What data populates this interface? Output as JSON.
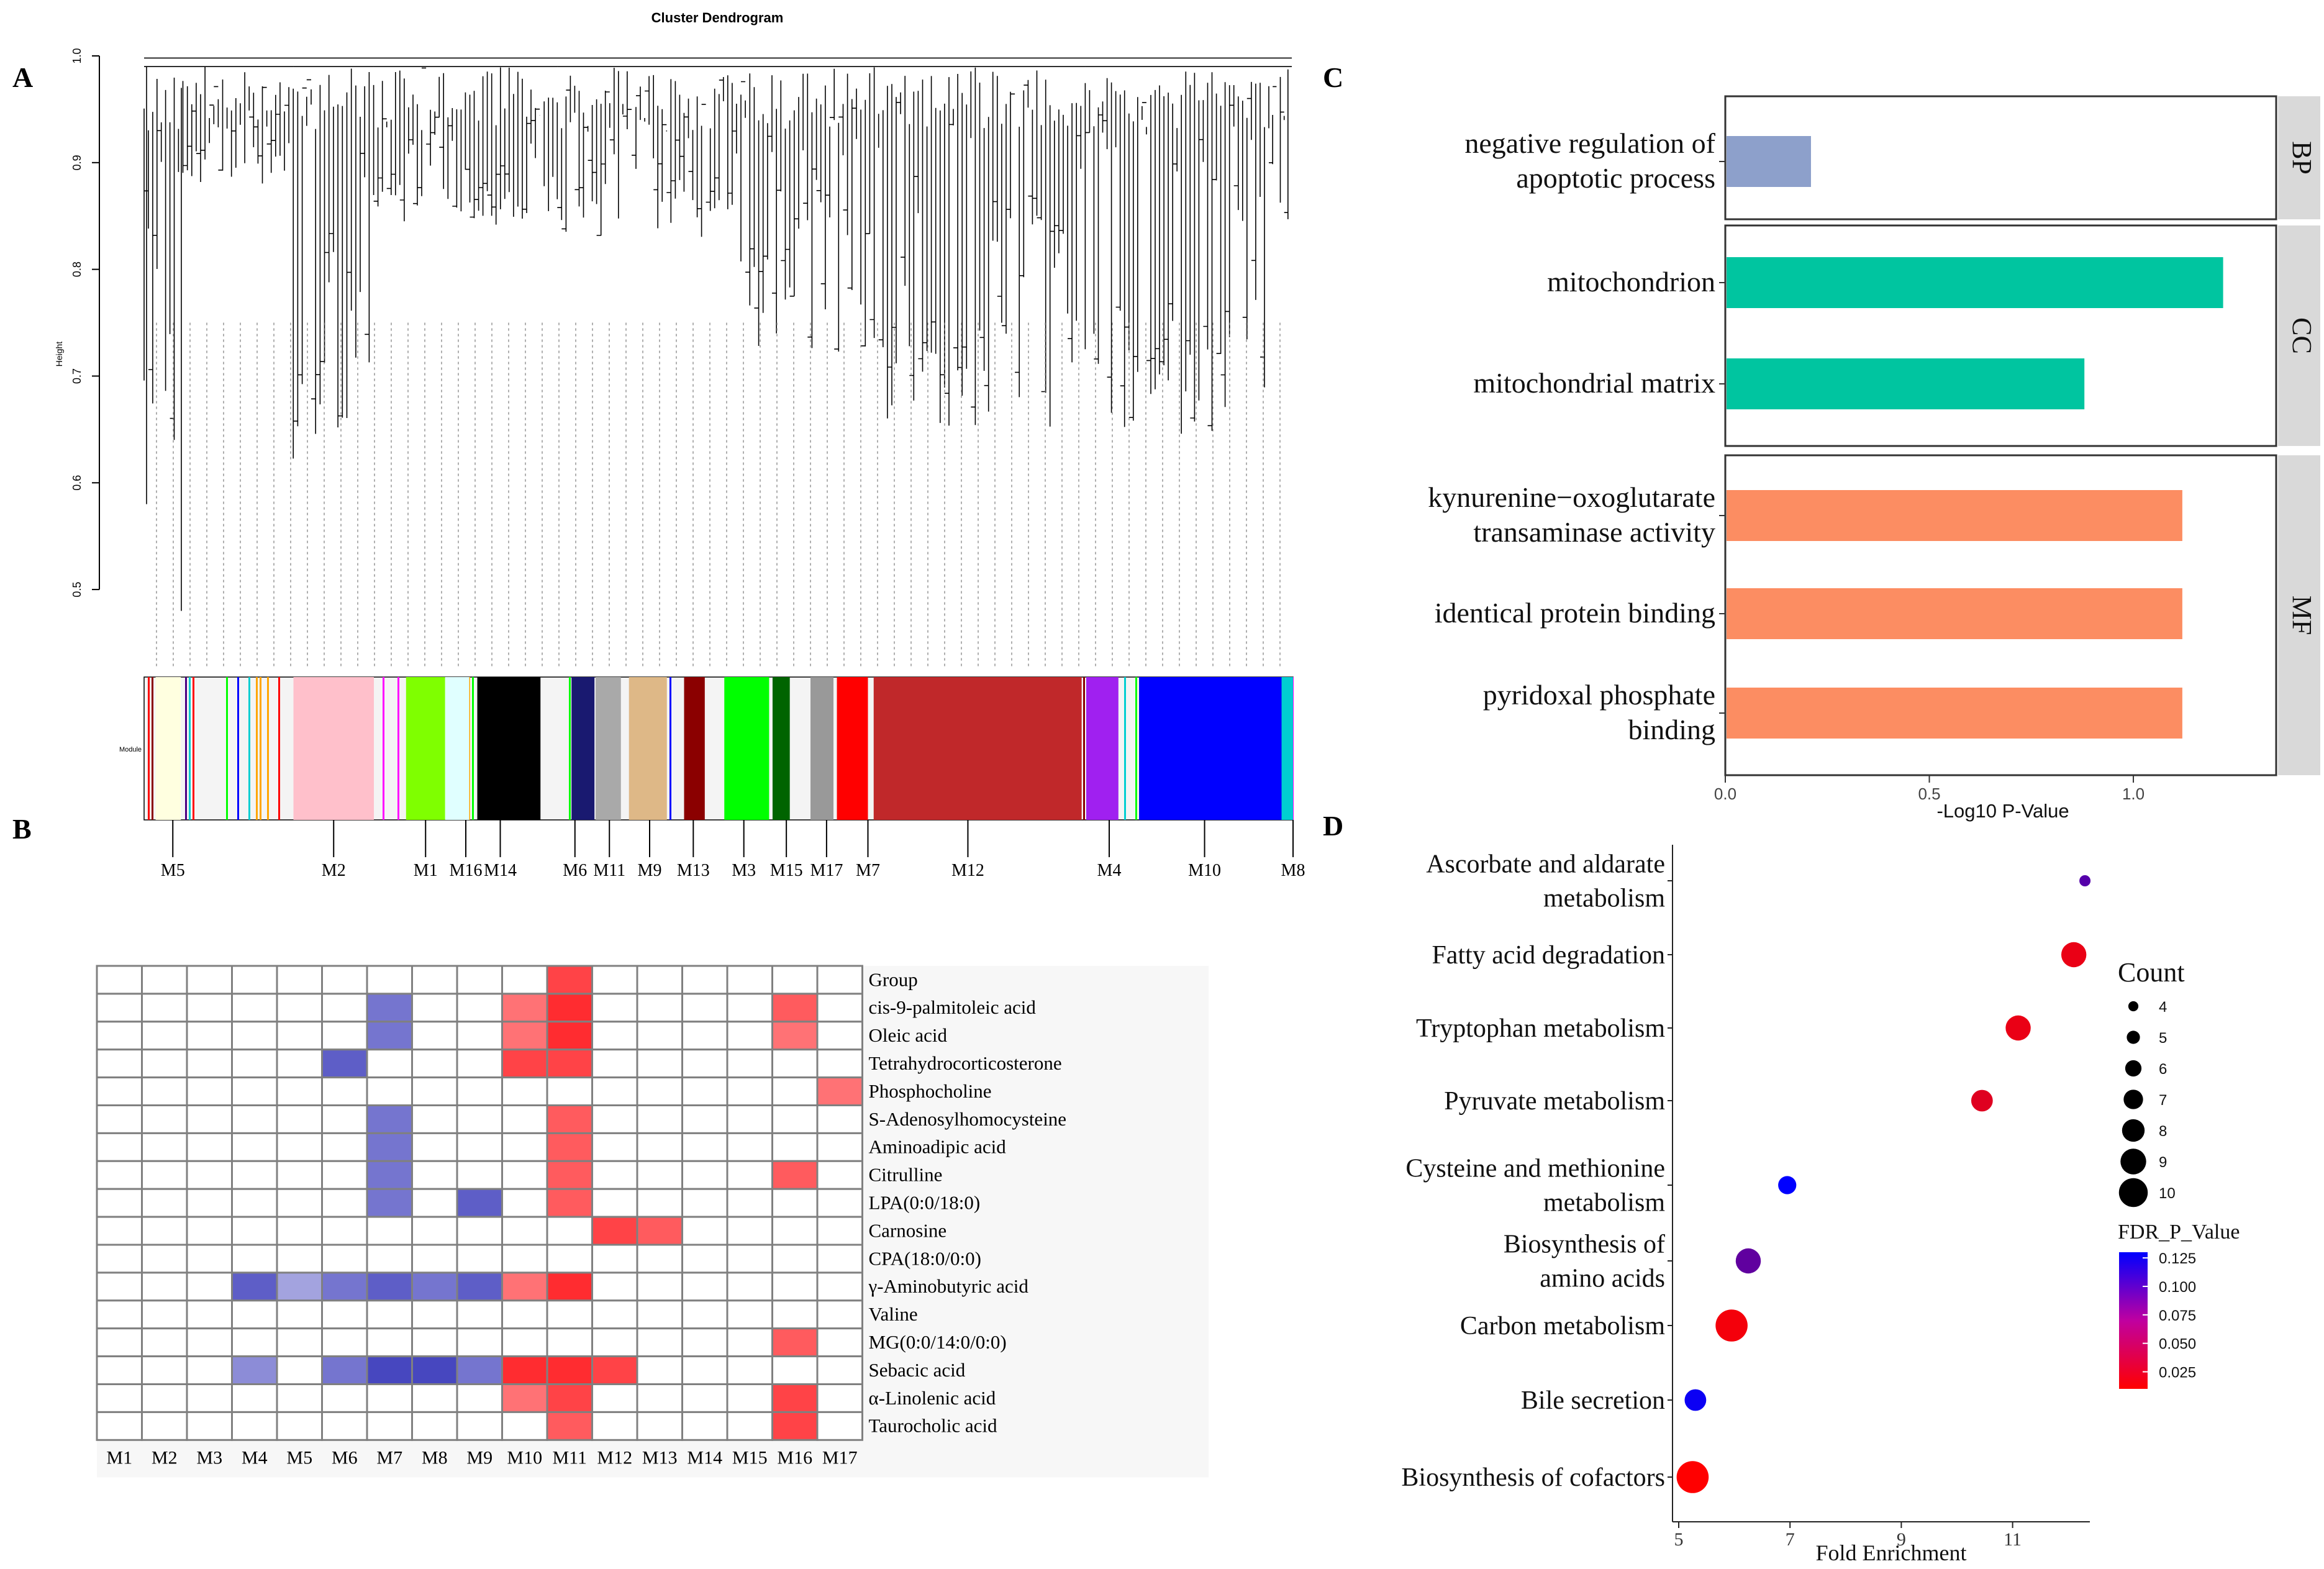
{
  "panel_labels": [
    "A",
    "B",
    "C",
    "D"
  ],
  "chart_data": [
    {
      "panel": "A",
      "type": "dendrogram",
      "title": "Cluster Dendrogram",
      "ylabel": "Height",
      "ylim": [
        0.45,
        1.0
      ],
      "yticks": [
        "0.5",
        "0.6",
        "0.7",
        "0.8",
        "0.9",
        "1.0"
      ],
      "ytick_values": [
        0.5,
        0.6,
        0.7,
        0.8,
        0.9,
        1.0
      ],
      "color_bar_label": "Module",
      "modules": [
        {
          "name": "M5",
          "color": "#ffffe0",
          "start": 0.01,
          "end": 0.032
        },
        {
          "name": "M2",
          "color": "#ffc0cb",
          "start": 0.13,
          "end": 0.2
        },
        {
          "name": "M1",
          "color": "#7fff00",
          "start": 0.228,
          "end": 0.262
        },
        {
          "name": "M16",
          "color": "#e0ffff",
          "start": 0.262,
          "end": 0.283
        },
        {
          "name": "M14",
          "color": "#000000",
          "start": 0.29,
          "end": 0.345
        },
        {
          "name": "M6",
          "color": "#191970",
          "start": 0.372,
          "end": 0.392
        },
        {
          "name": "M11",
          "color": "#a9a9a9",
          "start": 0.393,
          "end": 0.415
        },
        {
          "name": "M9",
          "color": "#deb887",
          "start": 0.422,
          "end": 0.455
        },
        {
          "name": "M13",
          "color": "#8b0000",
          "start": 0.47,
          "end": 0.488
        },
        {
          "name": "M3",
          "color": "#00ff00",
          "start": 0.505,
          "end": 0.544
        },
        {
          "name": "M15",
          "color": "#006400",
          "start": 0.547,
          "end": 0.562
        },
        {
          "name": "M17",
          "color": "#999999",
          "start": 0.58,
          "end": 0.6
        },
        {
          "name": "M7",
          "color": "#ff0000",
          "start": 0.603,
          "end": 0.63
        },
        {
          "name": "M12",
          "color": "#c0282a",
          "start": 0.635,
          "end": 0.816
        },
        {
          "name": "M4",
          "color": "#a020f0",
          "start": 0.82,
          "end": 0.848
        },
        {
          "name": "M10",
          "color": "#0000ff",
          "start": 0.866,
          "end": 0.99
        },
        {
          "name": "M8",
          "color": "#00ced1",
          "start": 0.99,
          "end": 1.0
        }
      ],
      "module_label_positions": [
        0.025,
        0.165,
        0.245,
        0.28,
        0.31,
        0.375,
        0.405,
        0.44,
        0.478,
        0.522,
        0.559,
        0.594,
        0.63,
        0.717,
        0.84,
        0.923,
        1.0
      ]
    },
    {
      "panel": "B",
      "type": "heatmap",
      "columns": [
        "M1",
        "M2",
        "M3",
        "M4",
        "M5",
        "M6",
        "M7",
        "M8",
        "M9",
        "M10",
        "M11",
        "M12",
        "M13",
        "M14",
        "M15",
        "M16",
        "M17"
      ],
      "rows": [
        "Group",
        "cis-9-palmitoleic acid",
        "Oleic acid",
        "Tetrahydrocorticosterone",
        "Phosphocholine",
        "S-Adenosylhomocysteine",
        "Aminoadipic acid",
        "Citrulline",
        "LPA(0:0/18:0)",
        "Carnosine",
        "CPA(18:0/0:0)",
        "γ-Aminobutyric acid",
        "Valine",
        "MG(0:0/14:0/0:0)",
        "Sebacic acid",
        "α-Linolenic acid",
        "Taurocholic acid"
      ],
      "values": [
        [
          0,
          0,
          0,
          0,
          0,
          0,
          0,
          0,
          0,
          0,
          0.8,
          0,
          0,
          0,
          0,
          0,
          0
        ],
        [
          0,
          0,
          0,
          0,
          0,
          0,
          -0.6,
          0,
          0,
          0.6,
          0.9,
          0,
          0,
          0,
          0,
          0.7,
          0
        ],
        [
          0,
          0,
          0,
          0,
          0,
          0,
          -0.6,
          0,
          0,
          0.6,
          0.9,
          0,
          0,
          0,
          0,
          0.6,
          0
        ],
        [
          0,
          0,
          0,
          0,
          0,
          -0.7,
          0,
          0,
          0,
          0.8,
          0.8,
          0,
          0,
          0,
          0,
          0,
          0
        ],
        [
          0,
          0,
          0,
          0,
          0,
          0,
          0,
          0,
          0,
          0,
          0,
          0,
          0,
          0,
          0,
          0,
          0.6
        ],
        [
          0,
          0,
          0,
          0,
          0,
          0,
          -0.6,
          0,
          0,
          0,
          0.7,
          0,
          0,
          0,
          0,
          0,
          0
        ],
        [
          0,
          0,
          0,
          0,
          0,
          0,
          -0.6,
          0,
          0,
          0,
          0.7,
          0,
          0,
          0,
          0,
          0,
          0
        ],
        [
          0,
          0,
          0,
          0,
          0,
          0,
          -0.6,
          0,
          0,
          0,
          0.7,
          0,
          0,
          0,
          0,
          0.7,
          0
        ],
        [
          0,
          0,
          0,
          0,
          0,
          0,
          -0.6,
          0,
          -0.7,
          0,
          0.7,
          0,
          0,
          0,
          0,
          0,
          0
        ],
        [
          0,
          0,
          0,
          0,
          0,
          0,
          0,
          0,
          0,
          0,
          0,
          0.8,
          0.7,
          0,
          0,
          0,
          0
        ],
        [
          0,
          0,
          0,
          0,
          0,
          0,
          0,
          0,
          0,
          0,
          0,
          0,
          0,
          0,
          0,
          0,
          0
        ],
        [
          0,
          0,
          0,
          -0.7,
          -0.4,
          -0.6,
          -0.7,
          -0.6,
          -0.7,
          0.6,
          0.9,
          0,
          0,
          0,
          0,
          0,
          0
        ],
        [
          0,
          0,
          0,
          0,
          0,
          0,
          0,
          0,
          0,
          0,
          0,
          0,
          0,
          0,
          0,
          0,
          0
        ],
        [
          0,
          0,
          0,
          0,
          0,
          0,
          0,
          0,
          0,
          0,
          0,
          0,
          0,
          0,
          0,
          0.7,
          0
        ],
        [
          0,
          0,
          0,
          -0.5,
          0,
          -0.6,
          -0.8,
          -0.8,
          -0.6,
          0.9,
          0.9,
          0.8,
          0,
          0,
          0,
          0,
          0
        ],
        [
          0,
          0,
          0,
          0,
          0,
          0,
          0,
          0,
          0,
          0.6,
          0.8,
          0,
          0,
          0,
          0,
          0.8,
          0
        ],
        [
          0,
          0,
          0,
          0,
          0,
          0,
          0,
          0,
          0,
          0,
          0.7,
          0,
          0,
          0,
          0,
          0.8,
          0
        ]
      ]
    },
    {
      "panel": "C",
      "type": "bar",
      "orientation": "horizontal",
      "xlabel": "-Log10 P-Value",
      "xlim": [
        0,
        1.35
      ],
      "xticks": [
        "0.0",
        "0.5",
        "1.0"
      ],
      "xtick_values": [
        0,
        0.5,
        1.0
      ],
      "facets": [
        {
          "name": "BP",
          "color": "#8da0cb",
          "categories": [
            [
              "negative regulation of",
              "apoptotic process"
            ]
          ],
          "values": [
            0.21
          ]
        },
        {
          "name": "CC",
          "color": "#00c5a0",
          "categories": [
            [
              "mitochondrion"
            ],
            [
              "mitochondrial matrix"
            ]
          ],
          "values": [
            1.22,
            0.88
          ]
        },
        {
          "name": "MF",
          "color": "#fc8d62",
          "categories": [
            [
              "kynurenine−oxoglutarate",
              "transaminase activity"
            ],
            [
              "identical protein binding"
            ],
            [
              "pyridoxal phosphate",
              "binding"
            ]
          ],
          "values": [
            1.12,
            1.12,
            1.12
          ]
        }
      ]
    },
    {
      "panel": "D",
      "type": "scatter",
      "xlabel": "Fold Enrichment",
      "xlim": [
        5,
        12.5
      ],
      "xticks": [
        "5",
        "7",
        "9",
        "11"
      ],
      "xtick_values": [
        5,
        7,
        9,
        11
      ],
      "categories": [
        [
          "Ascorbate and aldarate",
          "metabolism"
        ],
        [
          "Fatty acid degradation"
        ],
        [
          "Tryptophan metabolism"
        ],
        [
          "Pyruvate metabolism"
        ],
        [
          "Cysteine and methionine",
          "metabolism"
        ],
        [
          "Biosynthesis of",
          "amino acids"
        ],
        [
          "Carbon metabolism"
        ],
        [
          "Bile secretion"
        ],
        [
          "Biosynthesis of cofactors"
        ]
      ],
      "points": [
        {
          "x": 12.3,
          "count": 4,
          "fdr": 0.09
        },
        {
          "x": 12.1,
          "count": 8,
          "fdr": 0.02
        },
        {
          "x": 11.1,
          "count": 8,
          "fdr": 0.02
        },
        {
          "x": 10.45,
          "count": 7,
          "fdr": 0.025
        },
        {
          "x": 6.95,
          "count": 6,
          "fdr": 0.13
        },
        {
          "x": 6.25,
          "count": 8,
          "fdr": 0.085
        },
        {
          "x": 5.95,
          "count": 10,
          "fdr": 0.015
        },
        {
          "x": 5.3,
          "count": 7,
          "fdr": 0.125
        },
        {
          "x": 5.25,
          "count": 10,
          "fdr": 0.01
        }
      ],
      "size_legend_title": "Count",
      "size_legend": [
        4,
        5,
        6,
        7,
        8,
        9,
        10
      ],
      "color_legend_title": "FDR_P_Value",
      "color_legend_ticks": [
        "0.125",
        "0.100",
        "0.075",
        "0.050",
        "0.025"
      ],
      "color_legend_tick_values": [
        0.125,
        0.1,
        0.075,
        0.05,
        0.025
      ],
      "color_low": "#ff0000",
      "color_high": "#0000ff"
    }
  ]
}
